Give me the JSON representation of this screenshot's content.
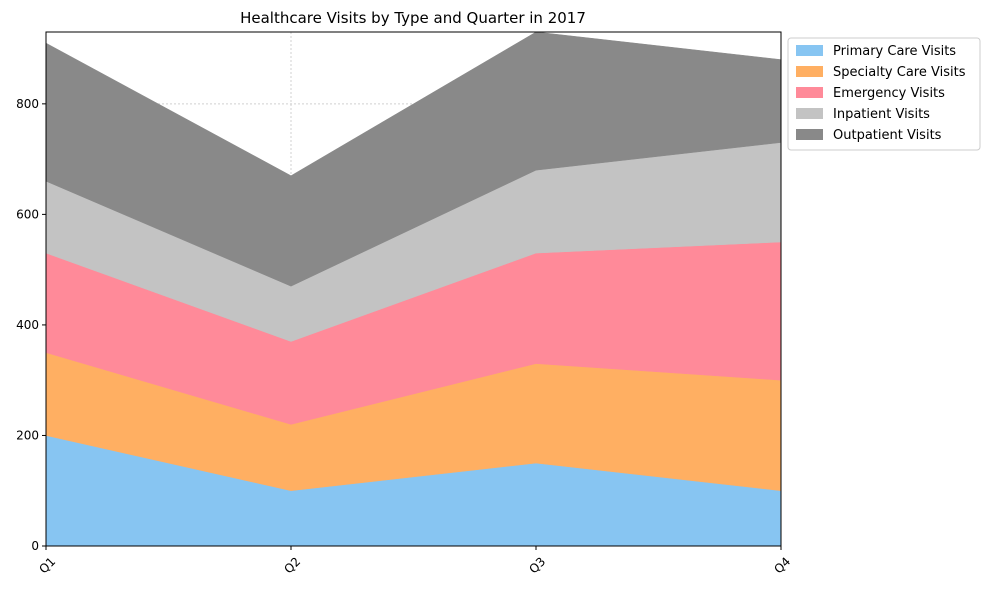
{
  "chart_data": {
    "type": "area",
    "stacked": true,
    "title": "Healthcare Visits by Type and Quarter in 2017",
    "xlabel": "",
    "ylabel": "",
    "categories": [
      "Q1",
      "Q2",
      "Q3",
      "Q4"
    ],
    "series": [
      {
        "name": "Primary Care Visits",
        "values": [
          200,
          100,
          150,
          100
        ],
        "color": "#87c5f2"
      },
      {
        "name": "Specialty Care Visits",
        "values": [
          150,
          120,
          180,
          200
        ],
        "color": "#ffaf62"
      },
      {
        "name": "Emergency Visits",
        "values": [
          180,
          150,
          200,
          250
        ],
        "color": "#ff8a99"
      },
      {
        "name": "Inpatient Visits",
        "values": [
          130,
          100,
          150,
          180
        ],
        "color": "#c3c3c3"
      },
      {
        "name": "Outpatient Visits",
        "values": [
          250,
          200,
          250,
          150
        ],
        "color": "#898989"
      }
    ],
    "ylim": [
      0,
      930
    ],
    "yticks": [
      0,
      200,
      400,
      600,
      800
    ],
    "grid": true,
    "legend_position": "upper-right-outside"
  }
}
